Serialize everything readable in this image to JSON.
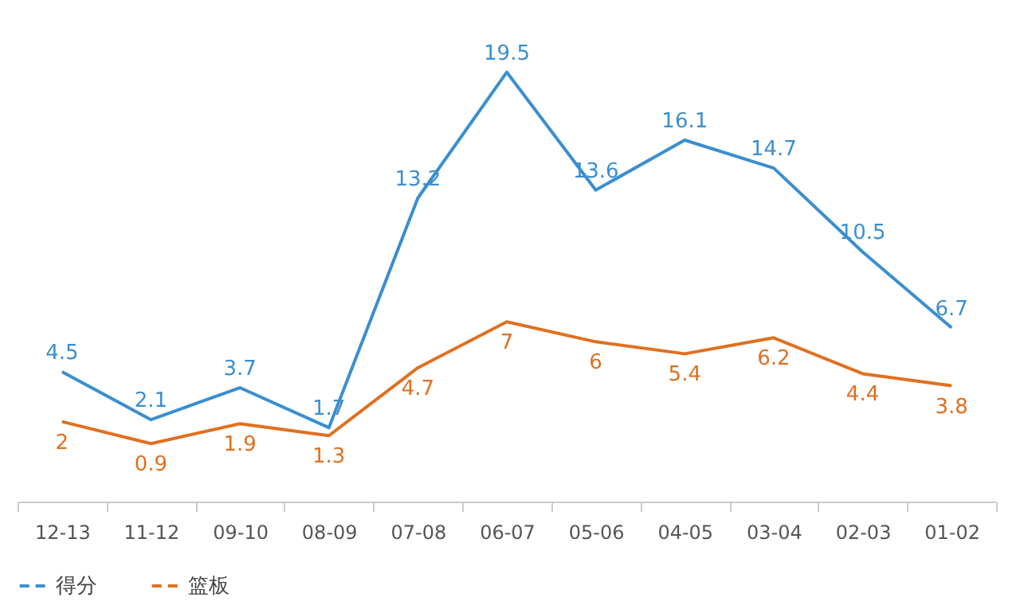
{
  "chart_data": {
    "type": "line",
    "categories": [
      "12-13",
      "11-12",
      "09-10",
      "08-09",
      "07-08",
      "06-07",
      "05-06",
      "04-05",
      "03-04",
      "02-03",
      "01-02"
    ],
    "series": [
      {
        "name": "得分",
        "color": "#3a8fd0",
        "values": [
          4.5,
          2.1,
          3.7,
          1.7,
          13.2,
          19.5,
          13.6,
          16.1,
          14.7,
          10.5,
          6.7
        ]
      },
      {
        "name": "篮板",
        "color": "#e07020",
        "values": [
          2,
          0.9,
          1.9,
          1.3,
          4.7,
          7,
          6,
          5.4,
          6.2,
          4.4,
          3.8
        ]
      }
    ],
    "data_labels": true,
    "legend": "bottom",
    "tick_labels": "x",
    "grid": false,
    "marker": "none",
    "line_style": "solid"
  }
}
